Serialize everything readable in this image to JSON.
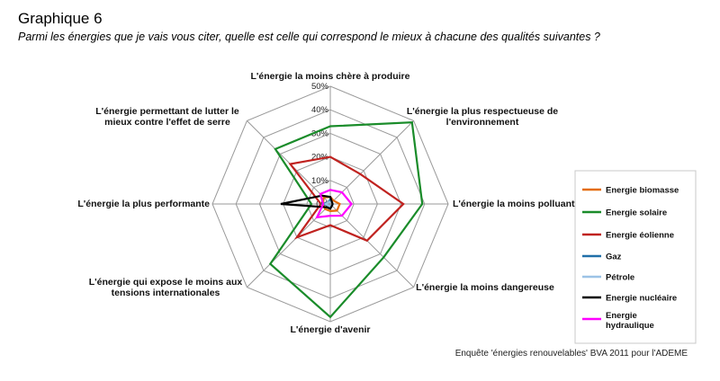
{
  "header": {
    "title": "Graphique 6",
    "subtitle": "Parmi les énergies que je vais vous citer, quelle est celle qui correspond le mieux à chacune des qualités suivantes ?"
  },
  "source": "Enquête 'énergies renouvelables' BVA 2011 pour l'ADEME",
  "chart_data": {
    "type": "radar",
    "categories": [
      "L'énergie la moins chère à produire",
      "L'énergie la plus respectueuse de l'environnement",
      "L'énergie la moins polluante",
      "L'énergie la moins dangereuse",
      "L'énergie d'avenir",
      "L'énergie qui expose le moins aux tensions internationales",
      "L'énergie la plus performante",
      "L'énergie permettant de lutter le mieux contre l'effet de serre"
    ],
    "category_lines": [
      [
        "L'énergie la moins chère à produire"
      ],
      [
        "L'énergie la plus respectueuse de",
        "l'environnement"
      ],
      [
        "L'énergie la moins polluante"
      ],
      [
        "L'énergie la moins dangereuse"
      ],
      [
        "L'énergie d'avenir"
      ],
      [
        "L'énergie qui expose le moins aux",
        "tensions internationales"
      ],
      [
        "L'énergie la plus performante"
      ],
      [
        "L'énergie permettant de lutter le",
        "mieux contre l'effet de serre"
      ]
    ],
    "range": [
      0,
      50
    ],
    "ticks": [
      0,
      10,
      20,
      30,
      40,
      50
    ],
    "tick_labels": [
      "0%",
      "10%",
      "20%",
      "30%",
      "40%",
      "50%"
    ],
    "grid": true,
    "legend_position": "right",
    "series": [
      {
        "name": "Energie biomasse",
        "color": "#e46c0a",
        "values": [
          3,
          2,
          4,
          4,
          3,
          3,
          3,
          4
        ]
      },
      {
        "name": "Energie solaire",
        "color": "#1a8c2a",
        "values": [
          33,
          49,
          39,
          32,
          48,
          36,
          8,
          33
        ]
      },
      {
        "name": "Energie éolienne",
        "color": "#c0221f",
        "values": [
          20,
          18,
          31,
          22,
          9,
          20,
          4,
          24
        ]
      },
      {
        "name": "Gaz",
        "color": "#1f6fa8",
        "values": [
          2,
          1,
          1,
          1,
          1,
          1,
          3,
          1
        ]
      },
      {
        "name": "Pétrole",
        "color": "#9cc3e6",
        "values": [
          1,
          1,
          1,
          1,
          1,
          1,
          2,
          1
        ]
      },
      {
        "name": "Energie nucléaire",
        "color": "#000000",
        "values": [
          3,
          1,
          1,
          1,
          2,
          2,
          21,
          5
        ]
      },
      {
        "name": "Energie hydraulique",
        "color": "#ff00ff",
        "values": [
          6,
          7,
          9,
          7,
          5,
          8,
          3,
          6
        ]
      }
    ]
  }
}
